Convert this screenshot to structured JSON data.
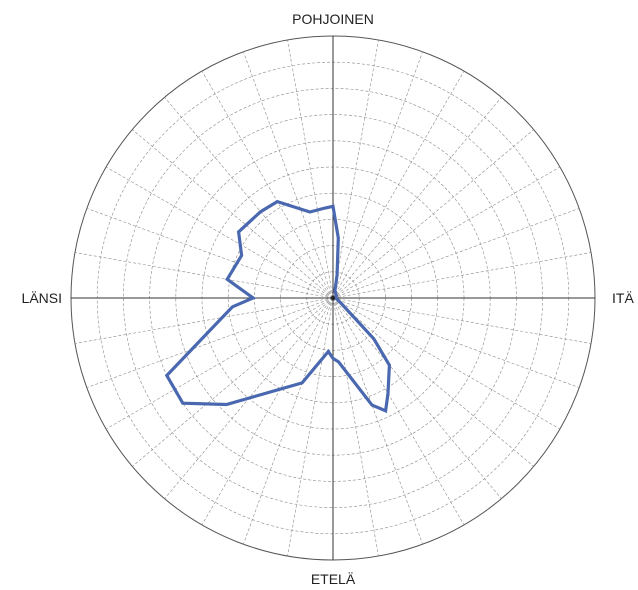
{
  "chart_data": {
    "type": "radar",
    "title": "",
    "directions": {
      "north": "POHJOINEN",
      "east": "ITÄ",
      "south": "ETELÄ",
      "west": "LÄNSI"
    },
    "angle_unit": "degrees clockwise from north",
    "r_range": [
      0,
      10
    ],
    "rings": 10,
    "spokes": 36,
    "grid": true,
    "series": [
      {
        "color": "#4a68b0",
        "points": [
          {
            "angle": 0,
            "r": 3.5
          },
          {
            "angle": 5,
            "r": 2.3
          },
          {
            "angle": 10,
            "r": 0.9
          },
          {
            "angle": 15,
            "r": 0.3
          },
          {
            "angle": 30,
            "r": 0.2
          },
          {
            "angle": 60,
            "r": 0.15
          },
          {
            "angle": 90,
            "r": 0.1
          },
          {
            "angle": 120,
            "r": 0.3
          },
          {
            "angle": 135,
            "r": 2.2
          },
          {
            "angle": 140,
            "r": 3.35
          },
          {
            "angle": 150,
            "r": 4.2
          },
          {
            "angle": 155,
            "r": 4.75
          },
          {
            "angle": 160,
            "r": 4.35
          },
          {
            "angle": 175,
            "r": 2.45
          },
          {
            "angle": 180,
            "r": 2.3
          },
          {
            "angle": 185,
            "r": 2.05
          },
          {
            "angle": 200,
            "r": 3.45
          },
          {
            "angle": 225,
            "r": 5.75
          },
          {
            "angle": 235,
            "r": 7.0
          },
          {
            "angle": 245,
            "r": 7.0
          },
          {
            "angle": 260,
            "r": 4.3
          },
          {
            "angle": 265,
            "r": 3.85
          },
          {
            "angle": 270,
            "r": 3.05
          },
          {
            "angle": 280,
            "r": 4.1
          },
          {
            "angle": 295,
            "r": 3.85
          },
          {
            "angle": 305,
            "r": 4.4
          },
          {
            "angle": 320,
            "r": 4.3
          },
          {
            "angle": 330,
            "r": 4.25
          },
          {
            "angle": 345,
            "r": 3.4
          },
          {
            "angle": 355,
            "r": 3.45
          }
        ]
      }
    ]
  }
}
